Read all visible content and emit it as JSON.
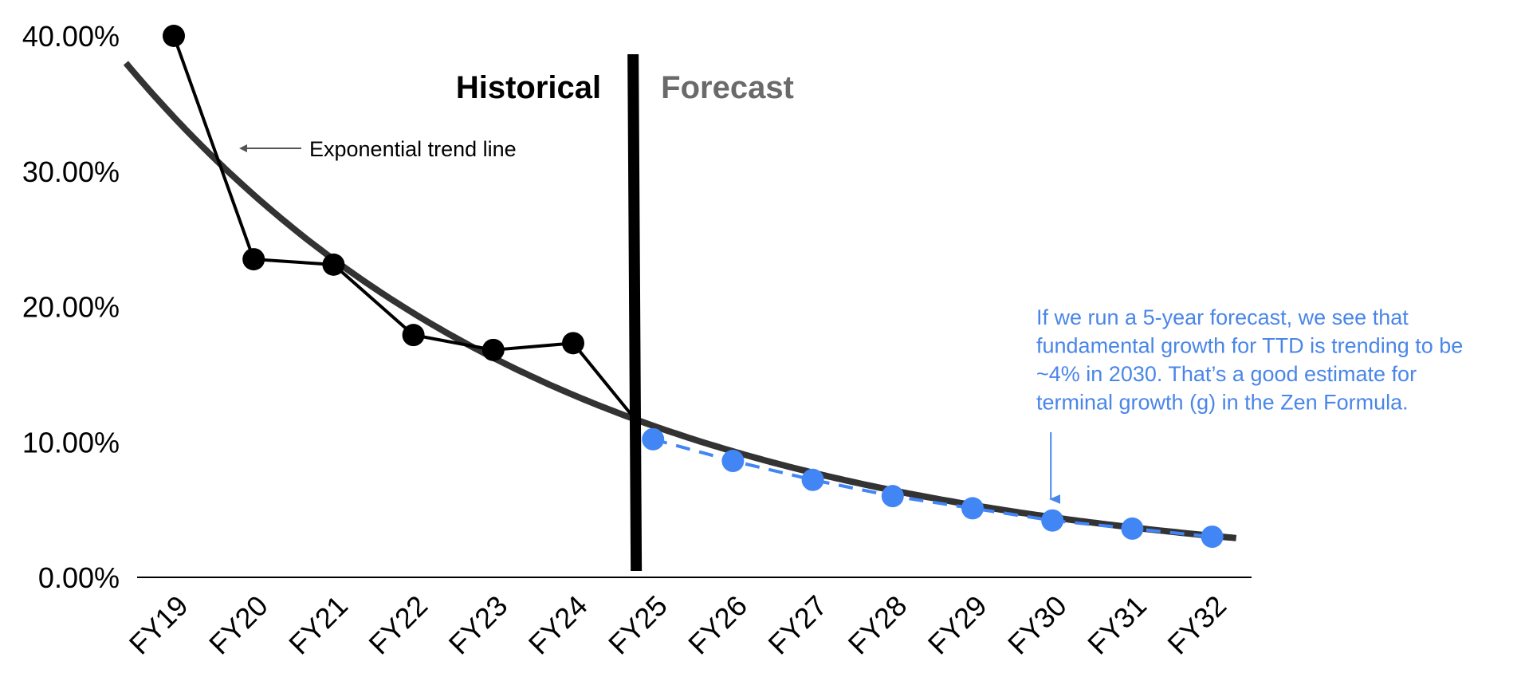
{
  "chart_data": {
    "type": "line",
    "categories": [
      "FY19",
      "FY20",
      "FY21",
      "FY22",
      "FY23",
      "FY24",
      "FY25",
      "FY26",
      "FY27",
      "FY28",
      "FY29",
      "FY30",
      "FY31",
      "FY32"
    ],
    "series": [
      {
        "name": "Historical",
        "values": [
          40.0,
          23.5,
          23.1,
          17.9,
          16.8,
          17.3,
          null,
          null,
          null,
          null,
          null,
          null,
          null,
          null
        ],
        "color": "#000000"
      },
      {
        "name": "Forecast",
        "values": [
          null,
          null,
          null,
          null,
          null,
          null,
          10.2,
          8.6,
          7.2,
          6.0,
          5.1,
          4.2,
          3.6,
          3.0
        ],
        "color": "#4285F4"
      }
    ],
    "trend": {
      "name": "Exponential trend line",
      "type": "exponential",
      "start_value": 38.0,
      "end_value": 2.9,
      "color": "#333333"
    },
    "ylim": [
      0,
      40
    ],
    "yticks": [
      "0.00%",
      "10.00%",
      "20.00%",
      "30.00%",
      "40.00%"
    ],
    "ytick_values": [
      0,
      10,
      20,
      30,
      40
    ],
    "divider_label_left": "Historical",
    "divider_label_right": "Forecast",
    "trend_label": "Exponential trend line",
    "annotation_lines": [
      "If we run a 5-year forecast, we see that",
      "fundamental growth for TTD is trending to be",
      "~4% in 2030. That’s a good estimate for",
      "terminal growth (g) in the Zen Formula."
    ],
    "annotation_target": "FY30",
    "colors": {
      "historical": "#000000",
      "forecast": "#4285F4",
      "trend": "#333333",
      "forecast_label": "#6a6a6a",
      "annotation": "#4a86e8"
    },
    "xlabel": "",
    "ylabel": "",
    "title": ""
  }
}
